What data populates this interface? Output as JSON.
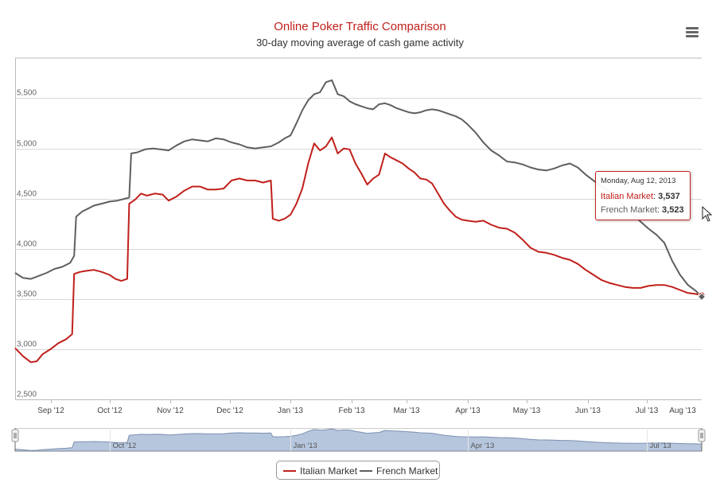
{
  "chart_data": {
    "type": "line",
    "title": "Online Poker Traffic Comparison",
    "subtitle": "30-day moving average of cash game activity",
    "ylim": [
      2500,
      5900
    ],
    "y_ticks": [
      "2,500",
      "3,000",
      "3,500",
      "4,000",
      "4,500",
      "5,000",
      "5,500"
    ],
    "y_tick_values": [
      2500,
      3000,
      3500,
      4000,
      4500,
      5000,
      5500
    ],
    "x_range_days": [
      0,
      349
    ],
    "x_ticks": [
      {
        "label": "Sep '12",
        "day": 18
      },
      {
        "label": "Oct '12",
        "day": 48
      },
      {
        "label": "Nov '12",
        "day": 79
      },
      {
        "label": "Dec '12",
        "day": 109
      },
      {
        "label": "Jan '13",
        "day": 140
      },
      {
        "label": "Feb '13",
        "day": 171
      },
      {
        "label": "Mar '13",
        "day": 199
      },
      {
        "label": "Apr '13",
        "day": 230
      },
      {
        "label": "May '13",
        "day": 260
      },
      {
        "label": "Jun '13",
        "day": 291
      },
      {
        "label": "Jul '13",
        "day": 321
      },
      {
        "label": "Aug '13",
        "day": 352
      }
    ],
    "series": [
      {
        "name": "Italian Market",
        "color": "#c0201b",
        "points": [
          [
            0,
            3010
          ],
          [
            4,
            2930
          ],
          [
            8,
            2870
          ],
          [
            11,
            2880
          ],
          [
            14,
            2950
          ],
          [
            18,
            3000
          ],
          [
            22,
            3060
          ],
          [
            26,
            3100
          ],
          [
            29,
            3150
          ],
          [
            30,
            3750
          ],
          [
            33,
            3770
          ],
          [
            36,
            3780
          ],
          [
            40,
            3790
          ],
          [
            44,
            3770
          ],
          [
            48,
            3740
          ],
          [
            51,
            3700
          ],
          [
            54,
            3680
          ],
          [
            57,
            3700
          ],
          [
            58,
            4450
          ],
          [
            61,
            4490
          ],
          [
            64,
            4550
          ],
          [
            67,
            4530
          ],
          [
            71,
            4550
          ],
          [
            75,
            4540
          ],
          [
            78,
            4480
          ],
          [
            82,
            4520
          ],
          [
            86,
            4580
          ],
          [
            90,
            4620
          ],
          [
            94,
            4620
          ],
          [
            98,
            4590
          ],
          [
            102,
            4590
          ],
          [
            106,
            4600
          ],
          [
            110,
            4680
          ],
          [
            114,
            4700
          ],
          [
            118,
            4680
          ],
          [
            122,
            4680
          ],
          [
            126,
            4660
          ],
          [
            130,
            4680
          ],
          [
            131,
            4300
          ],
          [
            134,
            4280
          ],
          [
            137,
            4300
          ],
          [
            140,
            4340
          ],
          [
            143,
            4450
          ],
          [
            146,
            4600
          ],
          [
            149,
            4850
          ],
          [
            152,
            5050
          ],
          [
            155,
            4980
          ],
          [
            158,
            5020
          ],
          [
            161,
            5110
          ],
          [
            164,
            4950
          ],
          [
            167,
            5000
          ],
          [
            170,
            4990
          ],
          [
            173,
            4850
          ],
          [
            176,
            4750
          ],
          [
            179,
            4640
          ],
          [
            182,
            4700
          ],
          [
            185,
            4740
          ],
          [
            188,
            4950
          ],
          [
            191,
            4910
          ],
          [
            194,
            4880
          ],
          [
            197,
            4850
          ],
          [
            200,
            4800
          ],
          [
            203,
            4760
          ],
          [
            206,
            4700
          ],
          [
            209,
            4690
          ],
          [
            212,
            4650
          ],
          [
            215,
            4550
          ],
          [
            218,
            4450
          ],
          [
            221,
            4380
          ],
          [
            224,
            4320
          ],
          [
            227,
            4290
          ],
          [
            230,
            4280
          ],
          [
            234,
            4270
          ],
          [
            238,
            4280
          ],
          [
            242,
            4240
          ],
          [
            246,
            4210
          ],
          [
            250,
            4200
          ],
          [
            254,
            4160
          ],
          [
            258,
            4090
          ],
          [
            262,
            4010
          ],
          [
            266,
            3970
          ],
          [
            270,
            3960
          ],
          [
            274,
            3940
          ],
          [
            278,
            3910
          ],
          [
            282,
            3890
          ],
          [
            286,
            3850
          ],
          [
            290,
            3790
          ],
          [
            294,
            3740
          ],
          [
            298,
            3690
          ],
          [
            302,
            3660
          ],
          [
            306,
            3640
          ],
          [
            310,
            3620
          ],
          [
            314,
            3610
          ],
          [
            318,
            3610
          ],
          [
            322,
            3630
          ],
          [
            326,
            3640
          ],
          [
            330,
            3640
          ],
          [
            334,
            3620
          ],
          [
            338,
            3590
          ],
          [
            342,
            3560
          ],
          [
            346,
            3550
          ],
          [
            349,
            3537
          ]
        ]
      },
      {
        "name": "French Market",
        "color": "#5f5f5f",
        "points": [
          [
            0,
            3760
          ],
          [
            4,
            3710
          ],
          [
            8,
            3700
          ],
          [
            12,
            3730
          ],
          [
            16,
            3760
          ],
          [
            20,
            3800
          ],
          [
            24,
            3820
          ],
          [
            28,
            3860
          ],
          [
            30,
            3930
          ],
          [
            31,
            4320
          ],
          [
            34,
            4370
          ],
          [
            37,
            4400
          ],
          [
            40,
            4430
          ],
          [
            44,
            4450
          ],
          [
            48,
            4470
          ],
          [
            52,
            4480
          ],
          [
            56,
            4500
          ],
          [
            58,
            4510
          ],
          [
            59,
            4950
          ],
          [
            62,
            4960
          ],
          [
            66,
            4990
          ],
          [
            70,
            5000
          ],
          [
            74,
            4990
          ],
          [
            78,
            4980
          ],
          [
            82,
            5030
          ],
          [
            86,
            5070
          ],
          [
            90,
            5090
          ],
          [
            94,
            5080
          ],
          [
            98,
            5070
          ],
          [
            102,
            5100
          ],
          [
            106,
            5090
          ],
          [
            110,
            5060
          ],
          [
            114,
            5040
          ],
          [
            118,
            5010
          ],
          [
            122,
            5000
          ],
          [
            126,
            5010
          ],
          [
            130,
            5020
          ],
          [
            134,
            5060
          ],
          [
            137,
            5100
          ],
          [
            140,
            5130
          ],
          [
            143,
            5250
          ],
          [
            146,
            5380
          ],
          [
            149,
            5480
          ],
          [
            152,
            5540
          ],
          [
            155,
            5560
          ],
          [
            158,
            5660
          ],
          [
            161,
            5680
          ],
          [
            164,
            5540
          ],
          [
            167,
            5520
          ],
          [
            170,
            5470
          ],
          [
            173,
            5440
          ],
          [
            176,
            5420
          ],
          [
            179,
            5400
          ],
          [
            182,
            5390
          ],
          [
            185,
            5440
          ],
          [
            188,
            5450
          ],
          [
            191,
            5430
          ],
          [
            194,
            5400
          ],
          [
            197,
            5380
          ],
          [
            200,
            5360
          ],
          [
            203,
            5350
          ],
          [
            206,
            5360
          ],
          [
            209,
            5380
          ],
          [
            212,
            5390
          ],
          [
            215,
            5380
          ],
          [
            218,
            5360
          ],
          [
            221,
            5340
          ],
          [
            224,
            5320
          ],
          [
            227,
            5290
          ],
          [
            230,
            5240
          ],
          [
            234,
            5160
          ],
          [
            238,
            5060
          ],
          [
            242,
            4980
          ],
          [
            246,
            4930
          ],
          [
            250,
            4870
          ],
          [
            254,
            4860
          ],
          [
            258,
            4840
          ],
          [
            262,
            4810
          ],
          [
            266,
            4790
          ],
          [
            270,
            4780
          ],
          [
            274,
            4800
          ],
          [
            278,
            4830
          ],
          [
            282,
            4850
          ],
          [
            286,
            4810
          ],
          [
            290,
            4740
          ],
          [
            294,
            4680
          ],
          [
            298,
            4620
          ],
          [
            302,
            4570
          ],
          [
            306,
            4500
          ],
          [
            310,
            4420
          ],
          [
            314,
            4340
          ],
          [
            318,
            4270
          ],
          [
            322,
            4200
          ],
          [
            326,
            4140
          ],
          [
            330,
            4060
          ],
          [
            334,
            3880
          ],
          [
            338,
            3740
          ],
          [
            342,
            3640
          ],
          [
            346,
            3580
          ],
          [
            349,
            3523
          ]
        ]
      }
    ],
    "navigator": {
      "labels": [
        {
          "label": "Oct '12",
          "day": 48
        },
        {
          "label": "Jan '13",
          "day": 140
        },
        {
          "label": "Apr '13",
          "day": 230
        },
        {
          "label": "Jul '13",
          "day": 321
        }
      ]
    },
    "legend": {
      "position": "bottom-center"
    },
    "tooltip": {
      "date": "Monday, Aug 12, 2013",
      "rows": [
        {
          "name": "Italian Market",
          "value": "3,537"
        },
        {
          "name": "French Market",
          "value": "3,523"
        }
      ]
    },
    "colors": {
      "title": "#c0201b",
      "navigator_fill": "#b6c6dd",
      "navigator_line": "#7b8faf",
      "grid": "#d8d8d8"
    }
  }
}
